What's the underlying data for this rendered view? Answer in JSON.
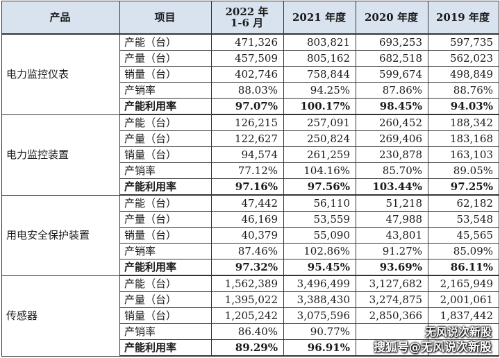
{
  "header": {
    "product": "产品",
    "item": "项目",
    "years": [
      {
        "line1": "2022 年",
        "line2": "1-6 月"
      },
      {
        "line1": "2021 年度",
        "line2": ""
      },
      {
        "line1": "2020 年度",
        "line2": ""
      },
      {
        "line1": "2019 年度",
        "line2": ""
      }
    ]
  },
  "groups": [
    {
      "product": "电力监控仪表",
      "rows": [
        {
          "item": "产能（台）",
          "bold": false,
          "values": [
            "471,326",
            "803,821",
            "693,253",
            "597,735"
          ]
        },
        {
          "item": "产量（台）",
          "bold": false,
          "values": [
            "457,509",
            "805,162",
            "682,518",
            "562,023"
          ]
        },
        {
          "item": "销量（台）",
          "bold": false,
          "values": [
            "402,746",
            "758,844",
            "599,674",
            "498,849"
          ]
        },
        {
          "item": "产销率",
          "bold": false,
          "values": [
            "88.03%",
            "94.25%",
            "87.86%",
            "88.76%"
          ]
        },
        {
          "item": "产能利用率",
          "bold": true,
          "values": [
            "97.07%",
            "100.17%",
            "98.45%",
            "94.03%"
          ]
        }
      ]
    },
    {
      "product": "电力监控装置",
      "rows": [
        {
          "item": "产能（台）",
          "bold": false,
          "values": [
            "126,215",
            "257,091",
            "260,452",
            "188,342"
          ]
        },
        {
          "item": "产量（台）",
          "bold": false,
          "values": [
            "122,627",
            "250,824",
            "269,406",
            "183,168"
          ]
        },
        {
          "item": "销量（台）",
          "bold": false,
          "values": [
            "94,574",
            "261,259",
            "230,878",
            "163,103"
          ]
        },
        {
          "item": "产销率",
          "bold": false,
          "values": [
            "77.12%",
            "104.16%",
            "85.70%",
            "89.05%"
          ]
        },
        {
          "item": "产能利用率",
          "bold": true,
          "values": [
            "97.16%",
            "97.56%",
            "103.44%",
            "97.25%"
          ]
        }
      ]
    },
    {
      "product": "用电安全保护装置",
      "rows": [
        {
          "item": "产能（台）",
          "bold": false,
          "values": [
            "47,442",
            "56,110",
            "51,218",
            "62,182"
          ]
        },
        {
          "item": "产量（台）",
          "bold": false,
          "values": [
            "46,169",
            "53,559",
            "47,988",
            "53,548"
          ]
        },
        {
          "item": "销量（台）",
          "bold": false,
          "values": [
            "40,379",
            "55,090",
            "43,801",
            "45,565"
          ]
        },
        {
          "item": "产销率",
          "bold": false,
          "values": [
            "87.46%",
            "102.86%",
            "91.27%",
            "85.09%"
          ]
        },
        {
          "item": "产能利用率",
          "bold": true,
          "values": [
            "97.32%",
            "95.45%",
            "93.69%",
            "86.11%"
          ]
        }
      ]
    },
    {
      "product": "传感器",
      "rows": [
        {
          "item": "产能（台）",
          "bold": false,
          "values": [
            "1,562,389",
            "3,496,499",
            "3,127,682",
            "2,165,949"
          ]
        },
        {
          "item": "产量（台）",
          "bold": false,
          "values": [
            "1,395,022",
            "3,388,430",
            "3,274,875",
            "2,001,061"
          ]
        },
        {
          "item": "销量（台）",
          "bold": false,
          "values": [
            "1,205,242",
            "3,075,596",
            "2,850,366",
            "1,837,442"
          ]
        },
        {
          "item": "产销率",
          "bold": false,
          "values": [
            "86.40%",
            "90.77%",
            "",
            ""
          ]
        },
        {
          "item": "产能利用率",
          "bold": true,
          "values": [
            "89.29%",
            "96.91%",
            "",
            ""
          ]
        }
      ]
    }
  ],
  "watermark": {
    "line1": "无风说次新股",
    "line2": "搜狐号@无风说次新股"
  }
}
